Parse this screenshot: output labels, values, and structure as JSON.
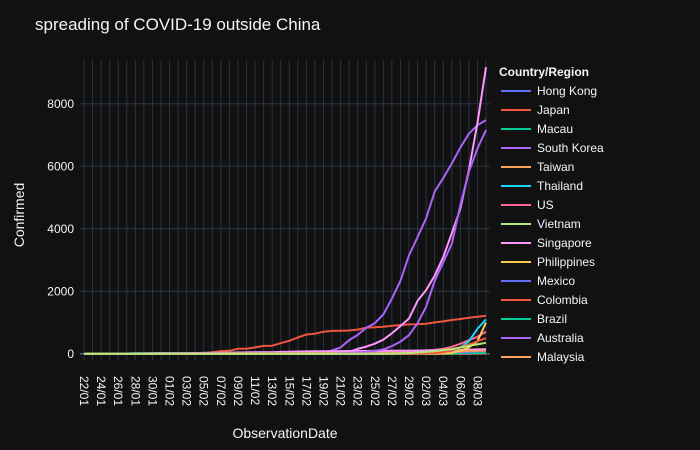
{
  "chart_data": {
    "type": "line",
    "title": "spreading of COVID-19 outside China",
    "xlabel": "ObservationDate",
    "ylabel": "Confirmed",
    "ylim": [
      -200,
      9400
    ],
    "yticks": [
      0,
      2000,
      4000,
      6000,
      8000
    ],
    "ytick_labels": [
      "0",
      "2000",
      "4000",
      "6000",
      "8000"
    ],
    "xtick_labels": [
      "22/01",
      "24/01",
      "26/01",
      "28/01",
      "30/01",
      "01/02",
      "03/02",
      "05/02",
      "07/02",
      "09/02",
      "11/02",
      "13/02",
      "15/02",
      "17/02",
      "19/02",
      "21/02",
      "23/02",
      "25/02",
      "27/02",
      "29/02",
      "02/03",
      "04/03",
      "06/03",
      "08/03"
    ],
    "grid": true,
    "legend": {
      "title": "Country/Region",
      "placement": "right"
    },
    "x_dates": [
      "22/01",
      "23/01",
      "24/01",
      "25/01",
      "26/01",
      "27/01",
      "28/01",
      "29/01",
      "30/01",
      "31/01",
      "01/02",
      "02/02",
      "03/02",
      "04/02",
      "05/02",
      "06/02",
      "07/02",
      "08/02",
      "09/02",
      "10/02",
      "11/02",
      "12/02",
      "13/02",
      "14/02",
      "15/02",
      "16/02",
      "17/02",
      "18/02",
      "19/02",
      "20/02",
      "21/02",
      "22/02",
      "23/02",
      "24/02",
      "25/02",
      "26/02",
      "27/02",
      "28/02",
      "29/02",
      "01/03",
      "02/03",
      "03/03",
      "04/03",
      "05/03",
      "06/03",
      "07/03",
      "08/03",
      "09/03"
    ],
    "series": [
      {
        "name": "Hong Kong",
        "color": "#636efa",
        "values": [
          0,
          2,
          5,
          5,
          8,
          8,
          8,
          10,
          10,
          12,
          13,
          14,
          15,
          18,
          21,
          24,
          26,
          26,
          36,
          42,
          49,
          50,
          53,
          56,
          56,
          57,
          60,
          62,
          63,
          68,
          68,
          69,
          74,
          79,
          84,
          91,
          92,
          94,
          95,
          96,
          100,
          100,
          105,
          105,
          108,
          110,
          115,
          115
        ]
      },
      {
        "name": "Japan",
        "color": "#EF553B",
        "values": [
          2,
          1,
          2,
          2,
          4,
          4,
          7,
          7,
          11,
          15,
          20,
          20,
          20,
          22,
          22,
          45,
          86,
          96,
          161,
          163,
          203,
          251,
          259,
          338,
          414,
          520,
          616,
          641,
          705,
          732,
          739,
          744,
          773,
          838,
          851,
          862,
          891,
          919,
          938,
          947,
          961,
          1004,
          1035,
          1079,
          1112,
          1149,
          1187,
          1219
        ]
      },
      {
        "name": "Macau",
        "color": "#00cc96",
        "values": [
          1,
          2,
          2,
          2,
          5,
          6,
          7,
          7,
          7,
          7,
          7,
          7,
          8,
          10,
          10,
          10,
          10,
          10,
          10,
          10,
          10,
          10,
          10,
          10,
          10,
          10,
          10,
          10,
          10,
          10,
          10,
          10,
          10,
          10,
          10,
          10,
          10,
          10,
          10,
          10,
          10,
          10,
          10,
          10,
          10,
          10,
          10,
          10
        ]
      },
      {
        "name": "South Korea",
        "color": "#ab63fa",
        "values": [
          1,
          1,
          2,
          2,
          3,
          4,
          4,
          4,
          4,
          11,
          12,
          15,
          15,
          16,
          19,
          23,
          24,
          24,
          25,
          27,
          28,
          28,
          28,
          28,
          28,
          29,
          30,
          31,
          31,
          104,
          204,
          433,
          602,
          833,
          977,
          1261,
          1766,
          2337,
          3150,
          3736,
          4335,
          5186,
          5621,
          6088,
          6593,
          7041,
          7314,
          7478
        ]
      },
      {
        "name": "Taiwan",
        "color": "#FFA15A",
        "values": [
          1,
          1,
          3,
          3,
          4,
          5,
          8,
          8,
          9,
          10,
          10,
          10,
          10,
          11,
          11,
          16,
          16,
          17,
          18,
          18,
          18,
          18,
          18,
          18,
          18,
          20,
          22,
          22,
          23,
          24,
          26,
          26,
          28,
          30,
          31,
          32,
          32,
          34,
          39,
          40,
          41,
          42,
          42,
          44,
          45,
          45,
          45,
          45
        ]
      },
      {
        "name": "Thailand",
        "color": "#19d3f3",
        "values": [
          2,
          3,
          5,
          7,
          8,
          8,
          14,
          14,
          14,
          19,
          19,
          19,
          19,
          25,
          25,
          25,
          25,
          32,
          32,
          32,
          33,
          33,
          33,
          33,
          33,
          34,
          35,
          35,
          35,
          35,
          35,
          35,
          35,
          35,
          37,
          40,
          40,
          41,
          42,
          42,
          43,
          43,
          43,
          47,
          48,
          50,
          50,
          50
        ]
      },
      {
        "name": "US",
        "color": "#FF6692",
        "values": [
          1,
          1,
          2,
          2,
          5,
          5,
          5,
          5,
          5,
          7,
          8,
          8,
          11,
          11,
          12,
          12,
          12,
          12,
          12,
          12,
          13,
          13,
          14,
          15,
          15,
          15,
          15,
          15,
          15,
          15,
          15,
          35,
          35,
          35,
          53,
          53,
          59,
          60,
          66,
          75,
          100,
          124,
          158,
          221,
          319,
          435,
          541,
          704
        ]
      },
      {
        "name": "Vietnam",
        "color": "#B6E880",
        "values": [
          0,
          2,
          2,
          2,
          2,
          2,
          2,
          2,
          2,
          2,
          6,
          6,
          8,
          8,
          10,
          10,
          12,
          13,
          14,
          14,
          15,
          15,
          16,
          16,
          16,
          16,
          16,
          16,
          16,
          16,
          16,
          16,
          16,
          16,
          16,
          16,
          16,
          16,
          16,
          16,
          16,
          16,
          16,
          16,
          16,
          18,
          30,
          30
        ]
      },
      {
        "name": "Singapore",
        "color": "#FF97FF",
        "values": [
          0,
          1,
          3,
          3,
          4,
          5,
          7,
          7,
          10,
          13,
          16,
          18,
          18,
          24,
          28,
          28,
          30,
          33,
          40,
          43,
          45,
          47,
          50,
          58,
          67,
          72,
          75,
          77,
          81,
          84,
          86,
          89,
          89,
          89,
          90,
          91,
          93,
          96,
          98,
          102,
          106,
          108,
          110,
          110,
          117,
          130,
          138,
          150
        ]
      },
      {
        "name": "Philippines",
        "color": "#FECB52",
        "values": [
          0,
          0,
          0,
          0,
          0,
          0,
          0,
          0,
          0,
          1,
          1,
          2,
          2,
          2,
          2,
          2,
          3,
          3,
          3,
          3,
          3,
          3,
          3,
          3,
          3,
          3,
          3,
          3,
          3,
          3,
          3,
          3,
          3,
          3,
          3,
          3,
          3,
          3,
          3,
          3,
          3,
          3,
          3,
          3,
          5,
          6,
          10,
          20
        ]
      },
      {
        "name": "Mexico",
        "color": "#636efa",
        "values": [
          0,
          0,
          0,
          0,
          0,
          0,
          0,
          0,
          0,
          0,
          0,
          0,
          0,
          0,
          0,
          0,
          0,
          0,
          0,
          0,
          0,
          0,
          0,
          0,
          0,
          0,
          0,
          0,
          0,
          0,
          0,
          0,
          0,
          0,
          0,
          0,
          0,
          1,
          4,
          5,
          5,
          5,
          5,
          5,
          6,
          6,
          7,
          7
        ]
      },
      {
        "name": "Colombia",
        "color": "#EF553B",
        "values": [
          0,
          0,
          0,
          0,
          0,
          0,
          0,
          0,
          0,
          0,
          0,
          0,
          0,
          0,
          0,
          0,
          0,
          0,
          0,
          0,
          0,
          0,
          0,
          0,
          0,
          0,
          0,
          0,
          0,
          0,
          0,
          0,
          0,
          0,
          0,
          0,
          0,
          0,
          0,
          0,
          0,
          0,
          0,
          0,
          1,
          1,
          1,
          3
        ]
      },
      {
        "name": "Brazil",
        "color": "#00cc96",
        "values": [
          0,
          0,
          0,
          0,
          0,
          0,
          0,
          0,
          0,
          0,
          0,
          0,
          0,
          0,
          0,
          0,
          0,
          0,
          0,
          0,
          0,
          0,
          0,
          0,
          0,
          0,
          0,
          0,
          0,
          0,
          0,
          0,
          0,
          0,
          0,
          1,
          1,
          1,
          2,
          2,
          2,
          2,
          4,
          4,
          13,
          13,
          20,
          25
        ]
      },
      {
        "name": "Australia",
        "color": "#ab63fa",
        "values": [
          0,
          0,
          0,
          0,
          4,
          5,
          5,
          6,
          9,
          9,
          12,
          12,
          12,
          13,
          13,
          14,
          15,
          15,
          15,
          15,
          15,
          15,
          15,
          15,
          15,
          15,
          15,
          15,
          15,
          15,
          17,
          21,
          22,
          22,
          22,
          23,
          23,
          25,
          26,
          27,
          30,
          39,
          52,
          55,
          60,
          63,
          76,
          91
        ]
      },
      {
        "name": "Malaysia",
        "color": "#FFA15A",
        "values": [
          0,
          0,
          0,
          4,
          4,
          4,
          4,
          7,
          8,
          8,
          8,
          8,
          8,
          10,
          12,
          12,
          12,
          16,
          16,
          18,
          18,
          18,
          19,
          19,
          22,
          22,
          22,
          22,
          22,
          22,
          22,
          22,
          22,
          22,
          22,
          22,
          23,
          25,
          29,
          29,
          29,
          36,
          50,
          50,
          83,
          93,
          99,
          117
        ]
      }
    ],
    "extra_series": [
      {
        "color": "#FF97FF",
        "values": [
          0,
          0,
          0,
          0,
          0,
          0,
          0,
          0,
          0,
          0,
          0,
          0,
          0,
          0,
          0,
          0,
          0,
          0,
          0,
          0,
          0,
          0,
          0,
          0,
          0,
          0,
          0,
          0,
          0,
          3,
          20,
          62,
          155,
          229,
          322,
          453,
          655,
          888,
          1128,
          1694,
          2036,
          2502,
          3089,
          3858,
          4636,
          5883,
          7375,
          9172
        ]
      },
      {
        "color": "#ab63fa",
        "values": [
          0,
          0,
          0,
          0,
          0,
          0,
          0,
          0,
          0,
          0,
          0,
          0,
          0,
          0,
          0,
          0,
          0,
          0,
          0,
          0,
          0,
          0,
          0,
          0,
          0,
          0,
          0,
          0,
          2,
          5,
          18,
          28,
          43,
          61,
          95,
          139,
          245,
          388,
          593,
          978,
          1501,
          2336,
          2922,
          3513,
          4747,
          5823,
          6566,
          7161
        ]
      },
      {
        "color": "#19d3f3",
        "values": [
          0,
          0,
          0,
          0,
          0,
          0,
          0,
          0,
          0,
          0,
          0,
          0,
          0,
          0,
          0,
          0,
          0,
          0,
          0,
          0,
          0,
          0,
          0,
          0,
          0,
          0,
          0,
          0,
          0,
          0,
          0,
          0,
          0,
          0,
          2,
          2,
          4,
          4,
          8,
          12,
          16,
          19,
          60,
          93,
          200,
          400,
          800,
          1100
        ]
      },
      {
        "color": "#FECB52",
        "values": [
          0,
          0,
          0,
          0,
          0,
          0,
          0,
          0,
          0,
          0,
          0,
          0,
          0,
          0,
          0,
          0,
          0,
          0,
          0,
          0,
          0,
          0,
          0,
          0,
          0,
          0,
          0,
          0,
          0,
          0,
          0,
          0,
          0,
          0,
          0,
          0,
          0,
          0,
          1,
          1,
          1,
          1,
          10,
          20,
          100,
          200,
          400,
          1000
        ]
      },
      {
        "color": "#EF553B",
        "values": [
          0,
          0,
          0,
          0,
          0,
          0,
          0,
          0,
          0,
          0,
          0,
          0,
          0,
          0,
          0,
          0,
          0,
          0,
          0,
          0,
          0,
          0,
          0,
          0,
          0,
          0,
          0,
          0,
          0,
          0,
          0,
          0,
          0,
          0,
          0,
          0,
          0,
          0,
          2,
          5,
          10,
          20,
          50,
          100,
          200,
          300,
          400,
          500
        ]
      },
      {
        "color": "#B6E880",
        "values": [
          0,
          0,
          0,
          0,
          0,
          0,
          0,
          0,
          0,
          0,
          0,
          0,
          0,
          0,
          0,
          0,
          0,
          0,
          0,
          0,
          0,
          0,
          0,
          0,
          0,
          0,
          0,
          0,
          0,
          0,
          0,
          1,
          1,
          1,
          1,
          2,
          5,
          10,
          20,
          40,
          60,
          80,
          120,
          150,
          200,
          250,
          300,
          350
        ]
      }
    ]
  }
}
